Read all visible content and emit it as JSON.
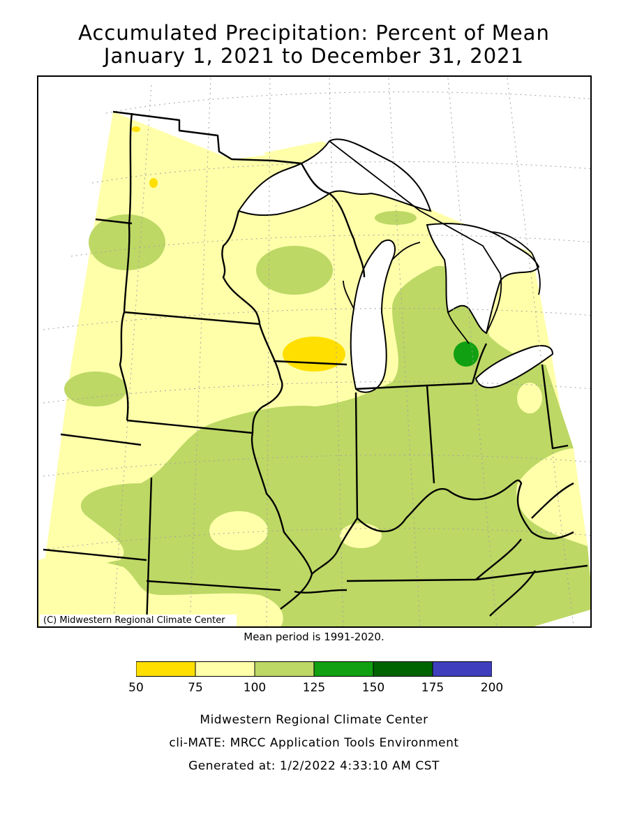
{
  "title": {
    "line1": "Accumulated Precipitation: Percent of Mean",
    "line2": "January 1, 2021 to December 31, 2021"
  },
  "map": {
    "copyright": "(C) Midwestern Regional Climate Center",
    "colors": {
      "water": "#ffffff",
      "c50_75": "#ffdf00",
      "c75_100": "#ffffaa",
      "c100_125": "#bdd865",
      "c125_150": "#11a011",
      "c150_175": "#006400",
      "c175_200": "#3f3fbd",
      "border": "#000000",
      "grid": "#a0a0a0"
    }
  },
  "mean_period": "Mean period is 1991-2020.",
  "legend": {
    "ticks": [
      "50",
      "75",
      "100",
      "125",
      "150",
      "175",
      "200"
    ],
    "bins": [
      {
        "range": "50-75",
        "color": "#ffdf00"
      },
      {
        "range": "75-100",
        "color": "#ffffaa"
      },
      {
        "range": "100-125",
        "color": "#bdd865"
      },
      {
        "range": "125-150",
        "color": "#11a011"
      },
      {
        "range": "150-175",
        "color": "#006400"
      },
      {
        "range": "175-200",
        "color": "#3f3fbd"
      }
    ]
  },
  "footer": {
    "line1": "Midwestern Regional Climate Center",
    "line2": "cli-MATE: MRCC Application Tools Environment",
    "line3": "Generated at: 1/2/2022 4:33:10 AM CST"
  }
}
